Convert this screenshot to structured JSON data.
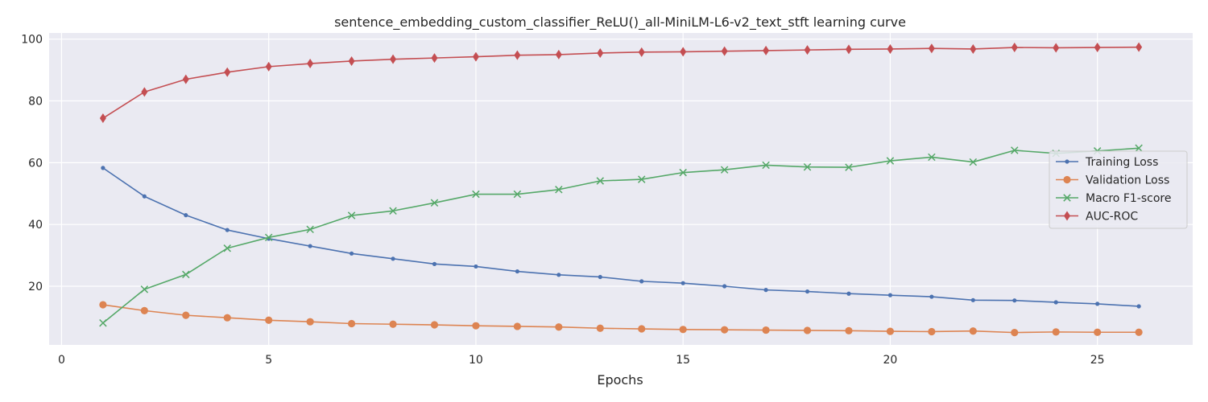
{
  "chart_data": {
    "type": "line",
    "title": "sentence_embedding_custom_classifier_ReLU()_all-MiniLM-L6-v2_text_stft learning curve",
    "xlabel": "Epochs",
    "ylabel": "",
    "xlim": [
      -0.3,
      27.3
    ],
    "ylim": [
      1,
      102
    ],
    "xticks": [
      0,
      5,
      10,
      15,
      20,
      25
    ],
    "yticks": [
      20,
      40,
      60,
      80,
      100
    ],
    "grid": true,
    "legend_position": "center-right",
    "x": [
      1,
      2,
      3,
      4,
      5,
      6,
      7,
      8,
      9,
      10,
      11,
      12,
      13,
      14,
      15,
      16,
      17,
      18,
      19,
      20,
      21,
      22,
      23,
      24,
      25,
      26
    ],
    "series": [
      {
        "name": "Training Loss",
        "color": "#4c72b0",
        "marker": "point",
        "values": [
          58.3,
          49.1,
          43.0,
          38.2,
          35.4,
          33.0,
          30.6,
          28.9,
          27.2,
          26.4,
          24.8,
          23.7,
          23.0,
          21.6,
          21.0,
          20.0,
          18.8,
          18.3,
          17.6,
          17.1,
          16.6,
          15.5,
          15.4,
          14.8,
          14.3,
          13.5
        ]
      },
      {
        "name": "Validation Loss",
        "color": "#dd8452",
        "marker": "circle",
        "values": [
          14.0,
          12.1,
          10.6,
          9.8,
          9.0,
          8.5,
          7.9,
          7.7,
          7.5,
          7.2,
          7.0,
          6.8,
          6.4,
          6.2,
          6.0,
          5.9,
          5.8,
          5.7,
          5.6,
          5.4,
          5.3,
          5.5,
          5.0,
          5.2,
          5.1,
          5.1
        ]
      },
      {
        "name": "Macro F1-score",
        "color": "#55a868",
        "marker": "x",
        "values": [
          8.1,
          19.0,
          23.8,
          32.3,
          35.8,
          38.4,
          42.9,
          44.4,
          47.0,
          49.8,
          49.8,
          51.3,
          54.1,
          54.6,
          56.8,
          57.7,
          59.2,
          58.6,
          58.5,
          60.6,
          61.8,
          60.2,
          64.0,
          63.0,
          63.8,
          64.7
        ]
      },
      {
        "name": "AUC-ROC",
        "color": "#c44e52",
        "marker": "diamond",
        "values": [
          74.4,
          82.9,
          87.0,
          89.3,
          91.1,
          92.1,
          92.9,
          93.5,
          93.9,
          94.3,
          94.8,
          95.0,
          95.5,
          95.8,
          95.9,
          96.1,
          96.3,
          96.5,
          96.7,
          96.8,
          97.0,
          96.8,
          97.3,
          97.2,
          97.3,
          97.4
        ]
      }
    ]
  }
}
